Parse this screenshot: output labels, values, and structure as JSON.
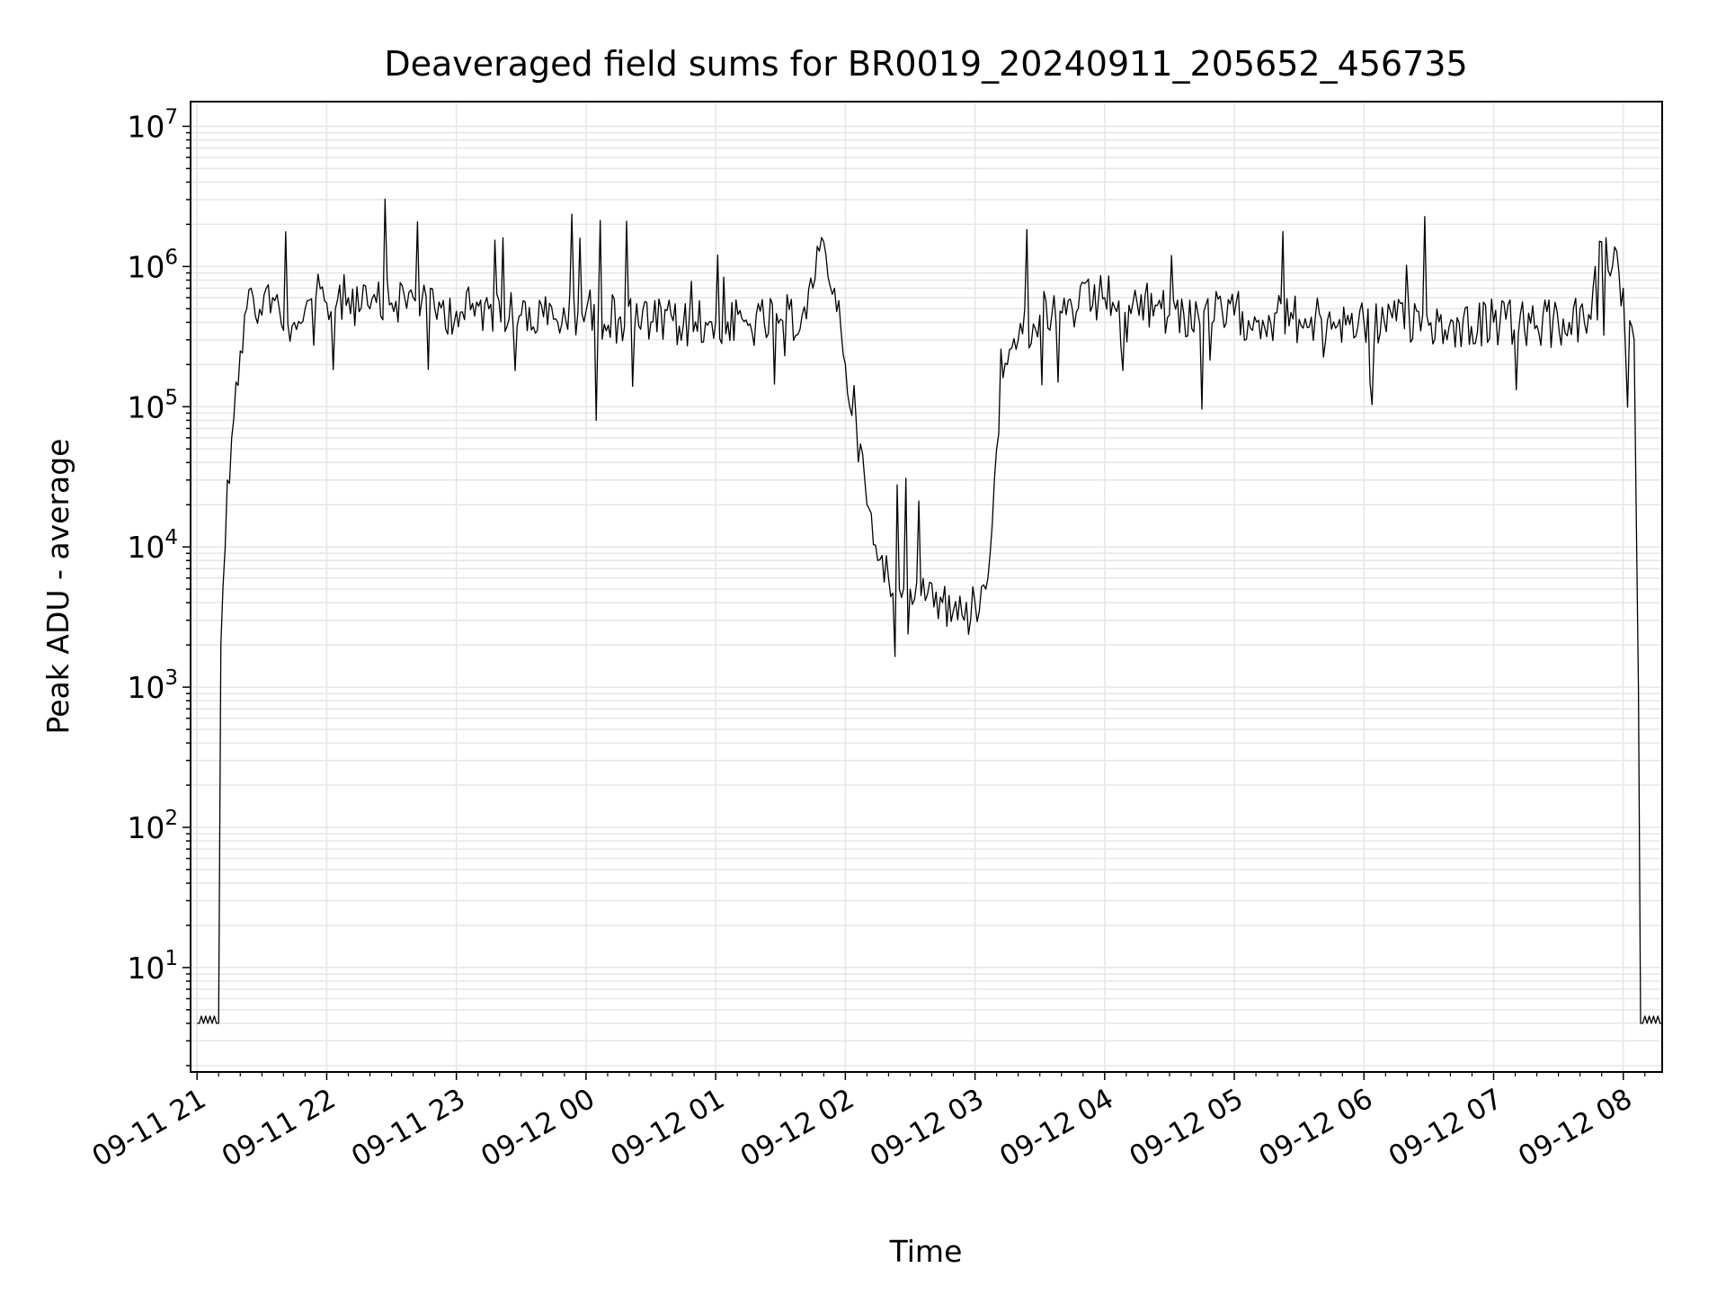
{
  "chart_data": {
    "type": "line",
    "title": "Deaveraged field sums for BR0019_20240911_205652_456735",
    "xlabel": "Time",
    "ylabel": "Peak ADU - average",
    "yscale": "log",
    "ylim": [
      1.8,
      15000000
    ],
    "xlim": [
      "2024-09-11T20:57",
      "2024-09-12T08:18"
    ],
    "grid": true,
    "line_color": "#000000",
    "grid_color": "#e6e6e6",
    "x_tick_labels": [
      "09-11 21",
      "09-11 22",
      "09-11 23",
      "09-12 00",
      "09-12 01",
      "09-12 02",
      "09-12 03",
      "09-12 04",
      "09-12 05",
      "09-12 06",
      "09-12 07",
      "09-12 08"
    ],
    "y_tick_labels": [
      {
        "base": "10",
        "exp": "1"
      },
      {
        "base": "10",
        "exp": "2"
      },
      {
        "base": "10",
        "exp": "3"
      },
      {
        "base": "10",
        "exp": "4"
      },
      {
        "base": "10",
        "exp": "5"
      },
      {
        "base": "10",
        "exp": "6"
      },
      {
        "base": "10",
        "exp": "7"
      }
    ],
    "series": [
      {
        "x": [
          "2024-09-11T21:00",
          "2024-09-11T21:10",
          "2024-09-11T21:11",
          "2024-09-11T21:13",
          "2024-09-11T21:14",
          "2024-09-11T21:16",
          "2024-09-11T21:18",
          "2024-09-11T21:20",
          "2024-09-11T21:23",
          "2024-09-11T21:26",
          "2024-09-11T21:30",
          "2024-09-11T21:32",
          "2024-09-11T21:35",
          "2024-09-11T21:40",
          "2024-09-11T21:45",
          "2024-09-11T21:50",
          "2024-09-11T21:55",
          "2024-09-11T22:00",
          "2024-09-11T22:10",
          "2024-09-11T22:20",
          "2024-09-11T22:30",
          "2024-09-11T22:40",
          "2024-09-11T22:50",
          "2024-09-11T23:00",
          "2024-09-11T23:15",
          "2024-09-11T23:30",
          "2024-09-11T23:45",
          "2024-09-12T00:00",
          "2024-09-12T00:15",
          "2024-09-12T00:30",
          "2024-09-12T00:45",
          "2024-09-12T01:00",
          "2024-09-12T01:15",
          "2024-09-12T01:30",
          "2024-09-12T01:40",
          "2024-09-12T01:45",
          "2024-09-12T01:50",
          "2024-09-12T01:55",
          "2024-09-12T02:00",
          "2024-09-12T02:05",
          "2024-09-12T02:10",
          "2024-09-12T02:15",
          "2024-09-12T02:20",
          "2024-09-12T02:25",
          "2024-09-12T02:30",
          "2024-09-12T02:35",
          "2024-09-12T02:40",
          "2024-09-12T02:45",
          "2024-09-12T02:50",
          "2024-09-12T02:55",
          "2024-09-12T03:00",
          "2024-09-12T03:05",
          "2024-09-12T03:10",
          "2024-09-12T03:15",
          "2024-09-12T03:20",
          "2024-09-12T03:30",
          "2024-09-12T03:45",
          "2024-09-12T04:00",
          "2024-09-12T04:15",
          "2024-09-12T04:30",
          "2024-09-12T05:00",
          "2024-09-12T05:30",
          "2024-09-12T06:00",
          "2024-09-12T06:30",
          "2024-09-12T07:00",
          "2024-09-12T07:20",
          "2024-09-12T07:35",
          "2024-09-12T07:45",
          "2024-09-12T07:50",
          "2024-09-12T07:55",
          "2024-09-12T08:00",
          "2024-09-12T08:05",
          "2024-09-12T08:07",
          "2024-09-12T08:08",
          "2024-09-12T08:18"
        ],
        "y": [
          4,
          4,
          2000,
          10000,
          30000,
          60000,
          150000,
          250000,
          500000,
          600000,
          450000,
          700000,
          600000,
          350000,
          400000,
          500000,
          600000,
          550000,
          600000,
          500000,
          550000,
          600000,
          500000,
          480000,
          500000,
          450000,
          420000,
          480000,
          420000,
          400000,
          380000,
          400000,
          380000,
          420000,
          450000,
          700000,
          1500000,
          700000,
          200000,
          80000,
          20000,
          8000,
          6000,
          5000,
          5000,
          4500,
          5500,
          4000,
          3500,
          3000,
          4000,
          5000,
          50000,
          200000,
          300000,
          450000,
          500000,
          600000,
          550000,
          450000,
          450000,
          420000,
          400000,
          380000,
          400000,
          380000,
          400000,
          420000,
          1500000,
          1000000,
          700000,
          300000,
          1000,
          4,
          4
        ]
      }
    ]
  }
}
